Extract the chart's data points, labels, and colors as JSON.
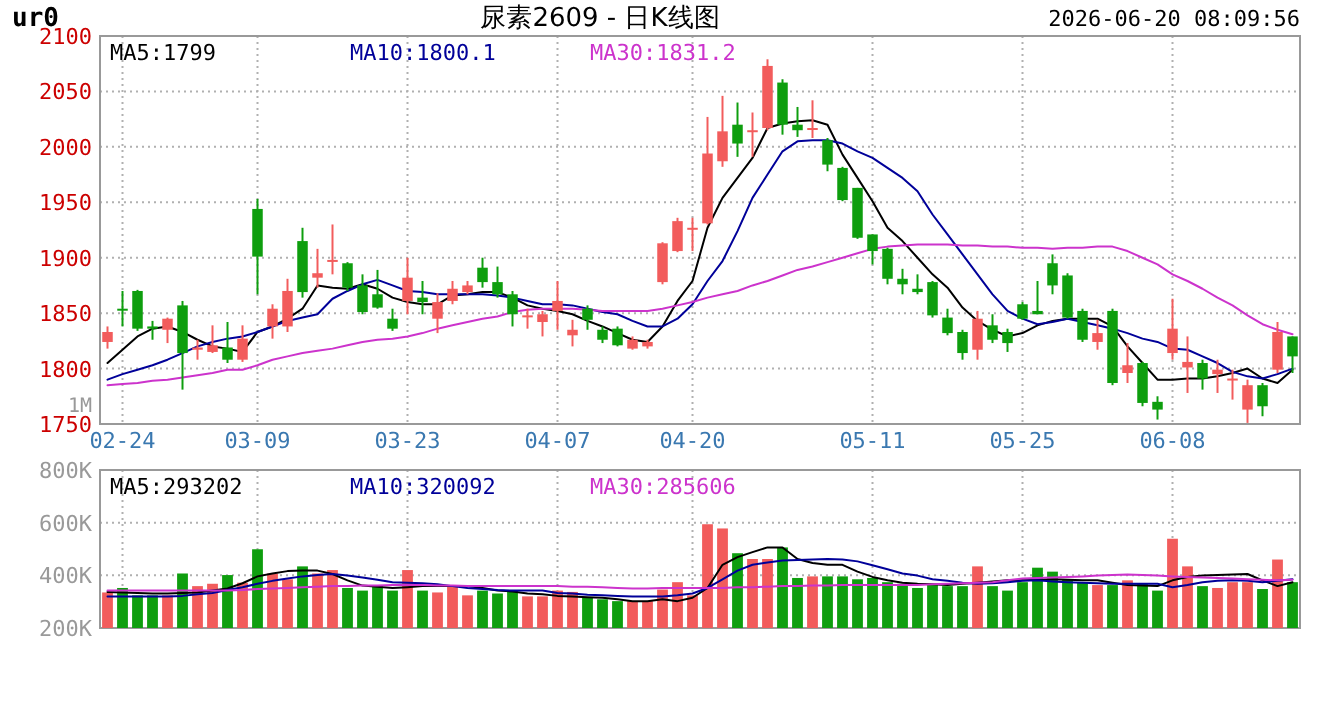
{
  "chart_data": [
    {
      "type": "candlestick",
      "title": "尿素2609 - 日K线图",
      "annotations": [
        "ur0",
        "2026-06-20 08:09:56",
        "1M"
      ],
      "categories": [
        null,
        "02-24",
        null,
        null,
        null,
        null,
        null,
        null,
        null,
        null,
        "03-09",
        null,
        null,
        null,
        null,
        null,
        null,
        null,
        null,
        null,
        "03-23",
        null,
        null,
        null,
        null,
        null,
        null,
        null,
        null,
        null,
        "04-07",
        null,
        null,
        null,
        null,
        null,
        null,
        null,
        null,
        "04-20",
        null,
        null,
        null,
        null,
        null,
        null,
        null,
        null,
        null,
        null,
        null,
        "05-11",
        null,
        null,
        null,
        null,
        null,
        null,
        null,
        null,
        null,
        "05-25",
        null,
        null,
        null,
        null,
        null,
        null,
        null,
        null,
        null,
        "06-08",
        null,
        null,
        null,
        null,
        null,
        null,
        null,
        null
      ],
      "ohlc": [
        [
          1824,
          1838,
          1818,
          1833
        ],
        [
          1854,
          1870,
          1838,
          1853
        ],
        [
          1870,
          1871,
          1834,
          1836
        ],
        [
          1838,
          1843,
          1826,
          1836
        ],
        [
          1835,
          1846,
          1823,
          1845
        ],
        [
          1857,
          1861,
          1781,
          1814
        ],
        [
          1817,
          1826,
          1808,
          1819
        ],
        [
          1815,
          1839,
          1814,
          1821
        ],
        [
          1819,
          1842,
          1805,
          1808
        ],
        [
          1808,
          1839,
          1806,
          1827
        ],
        [
          1944,
          1953,
          1867,
          1901
        ],
        [
          1838,
          1858,
          1827,
          1854
        ],
        [
          1838,
          1881,
          1833,
          1870
        ],
        [
          1915,
          1927,
          1864,
          1869
        ],
        [
          1882,
          1908,
          1873,
          1886
        ],
        [
          1897,
          1930,
          1885,
          1898
        ],
        [
          1895,
          1896,
          1870,
          1873
        ],
        [
          1875,
          1885,
          1849,
          1851
        ],
        [
          1867,
          1889,
          1854,
          1855
        ],
        [
          1845,
          1854,
          1834,
          1836
        ],
        [
          1861,
          1900,
          1849,
          1882
        ],
        [
          1864,
          1879,
          1849,
          1860
        ],
        [
          1845,
          1868,
          1832,
          1860
        ],
        [
          1861,
          1879,
          1858,
          1872
        ],
        [
          1869,
          1879,
          1867,
          1875
        ],
        [
          1891,
          1900,
          1873,
          1878
        ],
        [
          1878,
          1892,
          1864,
          1867
        ],
        [
          1867,
          1870,
          1838,
          1849
        ],
        [
          1847,
          1854,
          1836,
          1848
        ],
        [
          1842,
          1852,
          1829,
          1849
        ],
        [
          1852,
          1879,
          1835,
          1861
        ],
        [
          1830,
          1844,
          1820,
          1835
        ],
        [
          1854,
          1857,
          1835,
          1844
        ],
        [
          1835,
          1838,
          1823,
          1826
        ],
        [
          1836,
          1838,
          1820,
          1821
        ],
        [
          1818,
          1829,
          1817,
          1826
        ],
        [
          1820,
          1826,
          1818,
          1824
        ],
        [
          1878,
          1914,
          1876,
          1913
        ],
        [
          1906,
          1936,
          1905,
          1933
        ],
        [
          1926,
          1936,
          1906,
          1927
        ],
        [
          1931,
          2027,
          1930,
          1994
        ],
        [
          1987,
          2046,
          1982,
          2014
        ],
        [
          2020,
          2040,
          1991,
          2003
        ],
        [
          2014,
          2031,
          1991,
          2015
        ],
        [
          2017,
          2079,
          2015,
          2073
        ],
        [
          2058,
          2061,
          2011,
          2020
        ],
        [
          2020,
          2036,
          2009,
          2015
        ],
        [
          2016,
          2042,
          2008,
          2017
        ],
        [
          2006,
          2008,
          1978,
          1984
        ],
        [
          1981,
          1982,
          1951,
          1952
        ],
        [
          1963,
          1963,
          1917,
          1918
        ],
        [
          1921,
          1921,
          1894,
          1906
        ],
        [
          1908,
          1909,
          1876,
          1881
        ],
        [
          1881,
          1890,
          1867,
          1876
        ],
        [
          1872,
          1885,
          1867,
          1869
        ],
        [
          1878,
          1879,
          1846,
          1848
        ],
        [
          1846,
          1854,
          1830,
          1832
        ],
        [
          1833,
          1835,
          1808,
          1814
        ],
        [
          1817,
          1852,
          1808,
          1845
        ],
        [
          1839,
          1849,
          1823,
          1826
        ],
        [
          1833,
          1836,
          1815,
          1823
        ],
        [
          1858,
          1860,
          1844,
          1845
        ],
        [
          1852,
          1879,
          1849,
          1849
        ],
        [
          1895,
          1903,
          1867,
          1875
        ],
        [
          1884,
          1886,
          1845,
          1846
        ],
        [
          1852,
          1854,
          1824,
          1826
        ],
        [
          1824,
          1844,
          1817,
          1832
        ],
        [
          1852,
          1854,
          1785,
          1787
        ],
        [
          1796,
          1823,
          1787,
          1803
        ],
        [
          1805,
          1806,
          1766,
          1769
        ],
        [
          1770,
          1775,
          1754,
          1763
        ],
        [
          1814,
          1863,
          1808,
          1836
        ],
        [
          1801,
          1829,
          1778,
          1806
        ],
        [
          1805,
          1808,
          1781,
          1791
        ],
        [
          1795,
          1808,
          1778,
          1799
        ],
        [
          1790,
          1799,
          1772,
          1791
        ],
        [
          1763,
          1790,
          1751,
          1785
        ],
        [
          1785,
          1787,
          1757,
          1766
        ],
        [
          1799,
          1842,
          1796,
          1833
        ],
        [
          1829,
          1829,
          1796,
          1811
        ]
      ],
      "colors": [
        "#f25c5c",
        "#0e9e0e",
        "#0e9e0e",
        "#0e9e0e",
        "#f25c5c",
        "#0e9e0e",
        "#f25c5c",
        "#f25c5c",
        "#0e9e0e",
        "#f25c5c",
        "#0e9e0e",
        "#f25c5c",
        "#f25c5c",
        "#0e9e0e",
        "#f25c5c",
        "#f25c5c",
        "#0e9e0e",
        "#0e9e0e",
        "#0e9e0e",
        "#0e9e0e",
        "#f25c5c",
        "#0e9e0e",
        "#f25c5c",
        "#f25c5c",
        "#f25c5c",
        "#0e9e0e",
        "#0e9e0e",
        "#0e9e0e",
        "#f25c5c",
        "#f25c5c",
        "#f25c5c",
        "#f25c5c",
        "#0e9e0e",
        "#0e9e0e",
        "#0e9e0e",
        "#f25c5c",
        "#f25c5c",
        "#f25c5c",
        "#f25c5c",
        "#f25c5c",
        "#f25c5c",
        "#f25c5c",
        "#0e9e0e",
        "#f25c5c",
        "#f25c5c",
        "#0e9e0e",
        "#0e9e0e",
        "#f25c5c",
        "#0e9e0e",
        "#0e9e0e",
        "#0e9e0e",
        "#0e9e0e",
        "#0e9e0e",
        "#0e9e0e",
        "#0e9e0e",
        "#0e9e0e",
        "#0e9e0e",
        "#0e9e0e",
        "#f25c5c",
        "#0e9e0e",
        "#0e9e0e",
        "#0e9e0e",
        "#0e9e0e",
        "#0e9e0e",
        "#0e9e0e",
        "#0e9e0e",
        "#f25c5c",
        "#0e9e0e",
        "#f25c5c",
        "#0e9e0e",
        "#0e9e0e",
        "#f25c5c",
        "#f25c5c",
        "#0e9e0e",
        "#f25c5c",
        "#f25c5c",
        "#f25c5c",
        "#0e9e0e",
        "#f25c5c",
        "#0e9e0e"
      ],
      "series": [
        {
          "name": "MA5:1799",
          "type": "line",
          "color": "#000000",
          "values": [
            1805,
            1817,
            1829,
            1836,
            1838,
            1833,
            1826,
            1820,
            1818,
            1815,
            1833,
            1838,
            1845,
            1854,
            1875,
            1873,
            1872,
            1876,
            1872,
            1864,
            1860,
            1858,
            1858,
            1866,
            1867,
            1869,
            1869,
            1864,
            1857,
            1854,
            1852,
            1849,
            1843,
            1838,
            1832,
            1826,
            1824,
            1838,
            1861,
            1879,
            1927,
            1954,
            1972,
            1990,
            2017,
            2021,
            2023,
            2024,
            2020,
            1993,
            1972,
            1951,
            1927,
            1915,
            1900,
            1885,
            1873,
            1855,
            1843,
            1835,
            1829,
            1832,
            1839,
            1843,
            1845,
            1845,
            1845,
            1838,
            1820,
            1805,
            1790,
            1790,
            1791,
            1791,
            1793,
            1796,
            1800,
            1791,
            1787,
            1799
          ]
        },
        {
          "name": "MA10:1800.1",
          "type": "line",
          "color": "#000099",
          "values": [
            1790,
            1795,
            1799,
            1803,
            1808,
            1814,
            1820,
            1824,
            1827,
            1829,
            1833,
            1838,
            1843,
            1846,
            1849,
            1863,
            1870,
            1876,
            1880,
            1875,
            1870,
            1869,
            1867,
            1867,
            1867,
            1867,
            1866,
            1864,
            1861,
            1858,
            1858,
            1857,
            1854,
            1851,
            1849,
            1843,
            1838,
            1838,
            1845,
            1858,
            1879,
            1897,
            1924,
            1954,
            1975,
            1996,
            2005,
            2006,
            2006,
            2003,
            1996,
            1990,
            1981,
            1972,
            1960,
            1939,
            1921,
            1903,
            1885,
            1867,
            1852,
            1845,
            1840,
            1842,
            1845,
            1842,
            1839,
            1836,
            1832,
            1827,
            1824,
            1818,
            1817,
            1811,
            1805,
            1797,
            1793,
            1791,
            1795,
            1800
          ]
        },
        {
          "name": "MA30:1831.2",
          "type": "line",
          "color": "#cc33cc",
          "values": [
            1785,
            1786,
            1787,
            1789,
            1790,
            1792,
            1794,
            1796,
            1799,
            1799,
            1803,
            1808,
            1811,
            1814,
            1816,
            1818,
            1821,
            1824,
            1826,
            1827,
            1829,
            1832,
            1836,
            1839,
            1842,
            1845,
            1847,
            1851,
            1853,
            1854,
            1854,
            1854,
            1853,
            1852,
            1852,
            1852,
            1852,
            1854,
            1857,
            1860,
            1864,
            1867,
            1870,
            1875,
            1879,
            1884,
            1889,
            1892,
            1896,
            1900,
            1904,
            1908,
            1910,
            1911,
            1912,
            1912,
            1912,
            1911,
            1911,
            1910,
            1910,
            1909,
            1909,
            1908,
            1909,
            1909,
            1910,
            1910,
            1906,
            1900,
            1894,
            1885,
            1879,
            1872,
            1864,
            1857,
            1848,
            1840,
            1835,
            1831
          ]
        }
      ],
      "ylim": [
        1750,
        2100
      ],
      "yticks": [
        1750,
        1800,
        1850,
        1900,
        1950,
        2000,
        2050,
        2100
      ],
      "grid": true,
      "legend": "top left"
    },
    {
      "type": "bar",
      "tick_labels": "y",
      "categories": [
        null,
        null,
        null,
        null,
        null,
        null,
        null,
        null,
        null,
        null,
        null,
        null,
        null,
        null,
        null,
        null,
        null,
        null,
        null,
        null,
        null,
        null,
        null,
        null,
        null,
        null,
        null,
        null,
        null,
        null,
        null,
        null,
        null,
        null,
        null,
        null,
        null,
        null,
        null,
        null,
        null,
        null,
        null,
        null,
        null,
        null,
        null,
        null,
        null,
        null,
        null,
        null,
        null,
        null,
        null,
        null,
        null,
        null,
        null,
        null,
        null,
        null,
        null,
        null,
        null,
        null,
        null,
        null,
        null,
        null,
        null,
        null,
        null,
        null,
        null,
        null,
        null,
        null,
        null,
        null
      ],
      "series": [
        {
          "type": "bar",
          "colors": [
            "#f25c5c",
            "#0e9e0e",
            "#0e9e0e",
            "#0e9e0e",
            "#f25c5c",
            "#0e9e0e",
            "#f25c5c",
            "#f25c5c",
            "#0e9e0e",
            "#f25c5c",
            "#0e9e0e",
            "#f25c5c",
            "#f25c5c",
            "#0e9e0e",
            "#f25c5c",
            "#f25c5c",
            "#0e9e0e",
            "#0e9e0e",
            "#0e9e0e",
            "#0e9e0e",
            "#f25c5c",
            "#0e9e0e",
            "#f25c5c",
            "#f25c5c",
            "#f25c5c",
            "#0e9e0e",
            "#0e9e0e",
            "#0e9e0e",
            "#f25c5c",
            "#f25c5c",
            "#f25c5c",
            "#f25c5c",
            "#0e9e0e",
            "#0e9e0e",
            "#0e9e0e",
            "#f25c5c",
            "#f25c5c",
            "#f25c5c",
            "#f25c5c",
            "#f25c5c",
            "#f25c5c",
            "#f25c5c",
            "#0e9e0e",
            "#f25c5c",
            "#f25c5c",
            "#0e9e0e",
            "#0e9e0e",
            "#f25c5c",
            "#0e9e0e",
            "#0e9e0e",
            "#0e9e0e",
            "#0e9e0e",
            "#0e9e0e",
            "#0e9e0e",
            "#0e9e0e",
            "#0e9e0e",
            "#0e9e0e",
            "#0e9e0e",
            "#f25c5c",
            "#0e9e0e",
            "#0e9e0e",
            "#0e9e0e",
            "#0e9e0e",
            "#0e9e0e",
            "#0e9e0e",
            "#0e9e0e",
            "#f25c5c",
            "#0e9e0e",
            "#f25c5c",
            "#0e9e0e",
            "#0e9e0e",
            "#f25c5c",
            "#f25c5c",
            "#0e9e0e",
            "#f25c5c",
            "#f25c5c",
            "#f25c5c",
            "#0e9e0e",
            "#f25c5c",
            "#0e9e0e"
          ],
          "values": [
            335,
            352,
            324,
            324,
            324,
            407,
            359,
            368,
            401,
            372,
            499,
            407,
            385,
            434,
            407,
            420,
            352,
            342,
            363,
            342,
            420,
            342,
            335,
            359,
            324,
            342,
            331,
            342,
            320,
            320,
            342,
            337,
            315,
            309,
            302,
            302,
            302,
            346,
            374,
            324,
            594,
            578,
            484,
            462,
            462,
            506,
            390,
            396,
            396,
            396,
            385,
            390,
            374,
            368,
            352,
            368,
            359,
            359,
            434,
            359,
            342,
            374,
            429,
            414,
            385,
            374,
            363,
            363,
            381,
            368,
            342,
            539,
            434,
            359,
            352,
            374,
            374,
            348,
            460,
            374
          ]
        },
        {
          "name": "MA5:293202",
          "type": "line",
          "color": "#000000",
          "values": [
            337,
            335,
            333,
            331,
            331,
            333,
            335,
            342,
            350,
            370,
            396,
            407,
            416,
            418,
            418,
            405,
            381,
            361,
            357,
            352,
            355,
            359,
            359,
            359,
            359,
            352,
            342,
            339,
            331,
            328,
            322,
            320,
            317,
            315,
            309,
            302,
            302,
            309,
            302,
            315,
            352,
            440,
            469,
            488,
            506,
            506,
            462,
            447,
            440,
            440,
            414,
            394,
            381,
            372,
            368,
            366,
            363,
            368,
            372,
            377,
            381,
            381,
            383,
            385,
            383,
            381,
            381,
            372,
            363,
            361,
            359,
            381,
            394,
            399,
            401,
            403,
            405,
            381,
            359,
            374
          ]
        },
        {
          "name": "MA10:320092",
          "type": "line",
          "color": "#000099",
          "values": [
            320,
            320,
            320,
            320,
            320,
            322,
            328,
            333,
            344,
            355,
            368,
            379,
            388,
            396,
            401,
            405,
            399,
            392,
            383,
            374,
            372,
            370,
            366,
            359,
            352,
            348,
            344,
            342,
            342,
            342,
            333,
            331,
            326,
            324,
            322,
            320,
            320,
            320,
            324,
            331,
            352,
            385,
            418,
            440,
            449,
            456,
            458,
            460,
            462,
            460,
            453,
            438,
            423,
            407,
            399,
            385,
            379,
            372,
            368,
            370,
            374,
            379,
            381,
            377,
            374,
            372,
            370,
            368,
            368,
            368,
            368,
            355,
            363,
            374,
            379,
            381,
            379,
            374,
            379,
            385
          ]
        },
        {
          "name": "MA30:285606",
          "type": "line",
          "color": "#cc33cc",
          "values": [
            342,
            342,
            342,
            342,
            342,
            342,
            342,
            342,
            342,
            344,
            348,
            350,
            352,
            355,
            357,
            359,
            359,
            361,
            361,
            363,
            363,
            363,
            361,
            361,
            359,
            359,
            359,
            359,
            359,
            359,
            359,
            357,
            357,
            355,
            352,
            350,
            350,
            352,
            352,
            352,
            352,
            352,
            355,
            355,
            357,
            359,
            359,
            361,
            361,
            363,
            363,
            363,
            363,
            363,
            363,
            366,
            368,
            370,
            372,
            374,
            381,
            388,
            390,
            392,
            394,
            396,
            399,
            401,
            403,
            401,
            399,
            396,
            394,
            392,
            390,
            388,
            385,
            383,
            381,
            383
          ]
        }
      ],
      "ylim": [
        200,
        800
      ],
      "yticks": [
        {
          "value": 200,
          "label": "200K"
        },
        {
          "value": 400,
          "label": "400K"
        },
        {
          "value": 600,
          "label": "600K"
        },
        {
          "value": 800,
          "label": "800K"
        }
      ],
      "grid": true,
      "legend": "top left"
    }
  ]
}
